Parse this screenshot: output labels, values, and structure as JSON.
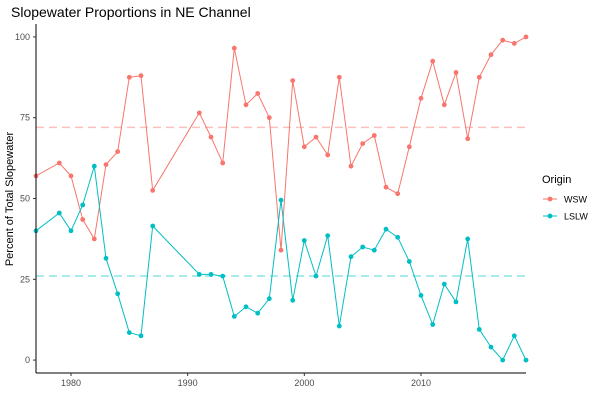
{
  "chart_data": {
    "type": "line",
    "title": "Slopewater Proportions in NE Channel",
    "xlabel": "",
    "ylabel": "Percent of Total Slopewater",
    "xlim": [
      1977,
      2019
    ],
    "ylim": [
      -4,
      104
    ],
    "x_ticks": [
      1980,
      1990,
      2000,
      2010
    ],
    "y_ticks": [
      0,
      25,
      50,
      75,
      100
    ],
    "grid": false,
    "legend": {
      "title": "Origin",
      "position": "right"
    },
    "series": [
      {
        "name": "WSW",
        "color": "#F8766D",
        "mean": 72,
        "points": [
          [
            1977,
            57
          ],
          [
            1979,
            61
          ],
          [
            1980,
            57
          ],
          [
            1981,
            43.5
          ],
          [
            1982,
            37.5
          ],
          [
            1983,
            60.5
          ],
          [
            1984,
            64.5
          ],
          [
            1985,
            87.5
          ],
          [
            1986,
            88
          ],
          [
            1987,
            52.5
          ],
          [
            1991,
            76.5
          ],
          [
            1992,
            69
          ],
          [
            1993,
            61
          ],
          [
            1994,
            96.5
          ],
          [
            1995,
            79
          ],
          [
            1996,
            82.5
          ],
          [
            1997,
            75
          ],
          [
            1998,
            34
          ],
          [
            1999,
            86.5
          ],
          [
            2000,
            66
          ],
          [
            2001,
            69
          ],
          [
            2002,
            63.5
          ],
          [
            2003,
            87.5
          ],
          [
            2004,
            60
          ],
          [
            2005,
            67
          ],
          [
            2006,
            69.5
          ],
          [
            2007,
            53.5
          ],
          [
            2008,
            51.5
          ],
          [
            2009,
            66
          ],
          [
            2010,
            81
          ],
          [
            2011,
            92.5
          ],
          [
            2012,
            79
          ],
          [
            2013,
            89
          ],
          [
            2014,
            68.5
          ],
          [
            2015,
            87.5
          ],
          [
            2016,
            94.5
          ],
          [
            2017,
            99
          ],
          [
            2018,
            98
          ],
          [
            2019,
            100
          ]
        ]
      },
      {
        "name": "LSLW",
        "color": "#00BFC4",
        "mean": 26,
        "points": [
          [
            1977,
            40
          ],
          [
            1979,
            45.5
          ],
          [
            1980,
            40
          ],
          [
            1981,
            48
          ],
          [
            1982,
            60
          ],
          [
            1983,
            31.5
          ],
          [
            1984,
            20.5
          ],
          [
            1985,
            8.5
          ],
          [
            1986,
            7.5
          ],
          [
            1987,
            41.5
          ],
          [
            1991,
            26.5
          ],
          [
            1992,
            26.5
          ],
          [
            1993,
            26
          ],
          [
            1994,
            13.5
          ],
          [
            1995,
            16.5
          ],
          [
            1996,
            14.5
          ],
          [
            1997,
            19
          ],
          [
            1998,
            49.5
          ],
          [
            1999,
            18.5
          ],
          [
            2000,
            37
          ],
          [
            2001,
            26
          ],
          [
            2002,
            38.5
          ],
          [
            2003,
            10.5
          ],
          [
            2004,
            32
          ],
          [
            2005,
            35
          ],
          [
            2006,
            34
          ],
          [
            2007,
            40.5
          ],
          [
            2008,
            38
          ],
          [
            2009,
            30.5
          ],
          [
            2010,
            20
          ],
          [
            2011,
            11
          ],
          [
            2012,
            23.5
          ],
          [
            2013,
            18
          ],
          [
            2014,
            37.5
          ],
          [
            2015,
            9.5
          ],
          [
            2016,
            4
          ],
          [
            2017,
            0
          ],
          [
            2018,
            7.5
          ],
          [
            2019,
            0
          ]
        ]
      }
    ]
  }
}
